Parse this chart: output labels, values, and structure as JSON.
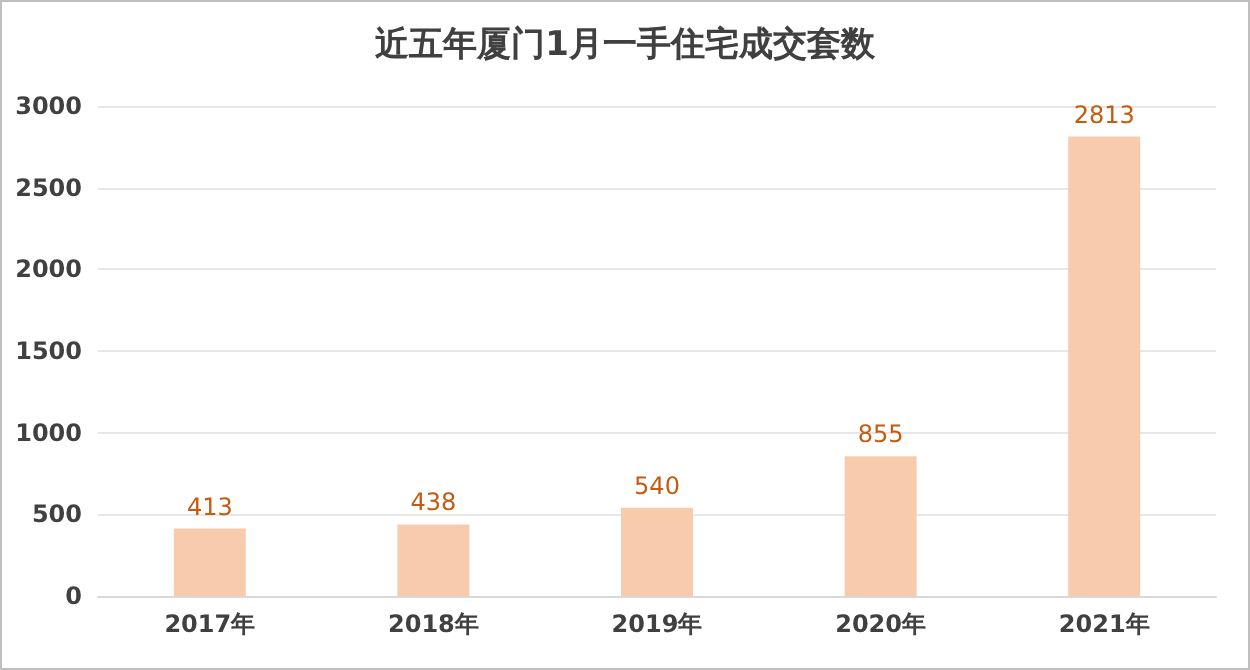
{
  "chart_data": {
    "type": "bar",
    "title": "近五年厦门1月一手住宅成交套数",
    "categories": [
      "2017年",
      "2018年",
      "2019年",
      "2020年",
      "2021年"
    ],
    "values": [
      413,
      438,
      540,
      855,
      2813
    ],
    "color": "#f8cbad",
    "ylim": [
      0,
      3000
    ],
    "yticks": [
      0,
      500,
      1000,
      1500,
      2000,
      2500,
      3000
    ],
    "grid": "y",
    "data_labels": true
  }
}
